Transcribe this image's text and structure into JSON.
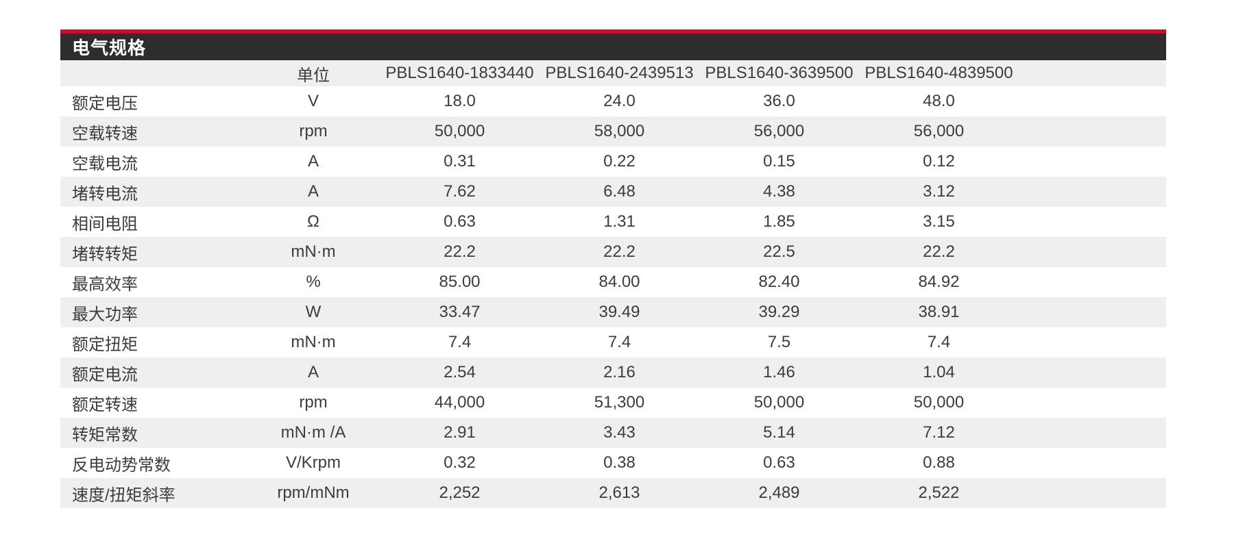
{
  "table": {
    "title": "电气规格",
    "accent_color": "#c8102e",
    "title_bar_color": "#2e2d2c",
    "stripe_color": "#efefef",
    "text_color": "#3f3b39",
    "columns": [
      "",
      "单位",
      "PBLS1640-1833440",
      "PBLS1640-2439513",
      "PBLS1640-3639500",
      "PBLS1640-4839500"
    ],
    "rows": [
      {
        "label": "额定电压",
        "unit": "V",
        "values": [
          "18.0",
          "24.0",
          "36.0",
          "48.0"
        ]
      },
      {
        "label": "空载转速",
        "unit": "rpm",
        "values": [
          "50,000",
          "58,000",
          "56,000",
          "56,000"
        ]
      },
      {
        "label": "空载电流",
        "unit": "A",
        "values": [
          "0.31",
          "0.22",
          "0.15",
          "0.12"
        ]
      },
      {
        "label": "堵转电流",
        "unit": "A",
        "values": [
          "7.62",
          "6.48",
          "4.38",
          "3.12"
        ]
      },
      {
        "label": "相间电阻",
        "unit": "Ω",
        "values": [
          "0.63",
          "1.31",
          "1.85",
          "3.15"
        ]
      },
      {
        "label": "堵转转矩",
        "unit": "mN·m",
        "values": [
          "22.2",
          "22.2",
          "22.5",
          "22.2"
        ]
      },
      {
        "label": "最高效率",
        "unit": "%",
        "values": [
          "85.00",
          "84.00",
          "82.40",
          "84.92"
        ]
      },
      {
        "label": "最大功率",
        "unit": "W",
        "values": [
          "33.47",
          "39.49",
          "39.29",
          "38.91"
        ]
      },
      {
        "label": "额定扭矩",
        "unit": "mN·m",
        "values": [
          "7.4",
          "7.4",
          "7.5",
          "7.4"
        ]
      },
      {
        "label": "额定电流",
        "unit": "A",
        "values": [
          "2.54",
          "2.16",
          "1.46",
          "1.04"
        ]
      },
      {
        "label": "额定转速",
        "unit": "rpm",
        "values": [
          "44,000",
          "51,300",
          "50,000",
          "50,000"
        ]
      },
      {
        "label": "转矩常数",
        "unit": "mN·m /A",
        "values": [
          "2.91",
          "3.43",
          "5.14",
          "7.12"
        ]
      },
      {
        "label": "反电动势常数",
        "unit": "V/Krpm",
        "values": [
          "0.32",
          "0.38",
          "0.63",
          "0.88"
        ]
      },
      {
        "label": "速度/扭矩斜率",
        "unit": "rpm/mNm",
        "values": [
          "2,252",
          "2,613",
          "2,489",
          "2,522"
        ]
      }
    ]
  }
}
